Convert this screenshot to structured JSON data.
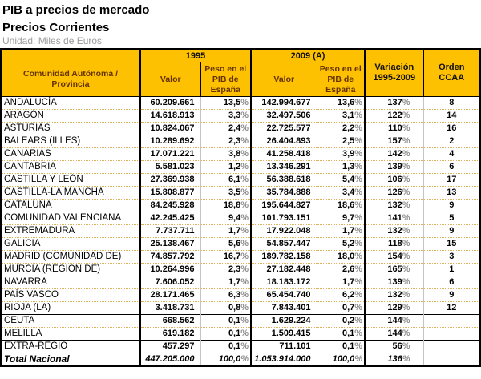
{
  "page": {
    "title_line1": "PIB a precios de mercado",
    "title_line2": "Precios Corrientes",
    "unit_label": "Unidad: Miles de Euros"
  },
  "colors": {
    "header_bg": "#FDC102",
    "header_text": "#663300",
    "row_divider_dotted": "#E0B055",
    "percent_sign_gray": "#8F8F8F",
    "border_black": "#000000"
  },
  "table": {
    "header": {
      "region": "Comunidad Autónoma / Provincia",
      "year1": "1995",
      "year2": "2009 (A)",
      "valor": "Valor",
      "peso": "Peso en el PIB de España",
      "variacion": "Variación 1995-2009",
      "orden": "Orden CCAA"
    },
    "rows": [
      {
        "name": "ANDALUCÍA",
        "valor_1995": "60.209.661",
        "peso_1995": "13,5%",
        "valor_2009": "142.994.677",
        "peso_2009": "13,6%",
        "variacion": "137%",
        "orden": "8"
      },
      {
        "name": "ARAGÓN",
        "valor_1995": "14.618.913",
        "peso_1995": "3,3%",
        "valor_2009": "32.497.506",
        "peso_2009": "3,1%",
        "variacion": "122%",
        "orden": "14"
      },
      {
        "name": "ASTURIAS",
        "valor_1995": "10.824.067",
        "peso_1995": "2,4%",
        "valor_2009": "22.725.577",
        "peso_2009": "2,2%",
        "variacion": "110%",
        "orden": "16"
      },
      {
        "name": "BALEARS (ILLES)",
        "valor_1995": "10.289.692",
        "peso_1995": "2,3%",
        "valor_2009": "26.404.893",
        "peso_2009": "2,5%",
        "variacion": "157%",
        "orden": "2"
      },
      {
        "name": "CANARIAS",
        "valor_1995": "17.071.221",
        "peso_1995": "3,8%",
        "valor_2009": "41.258.418",
        "peso_2009": "3,9%",
        "variacion": "142%",
        "orden": "4"
      },
      {
        "name": "CANTABRIA",
        "valor_1995": "5.581.023",
        "peso_1995": "1,2%",
        "valor_2009": "13.346.291",
        "peso_2009": "1,3%",
        "variacion": "139%",
        "orden": "6"
      },
      {
        "name": "CASTILLA Y LEÓN",
        "valor_1995": "27.369.938",
        "peso_1995": "6,1%",
        "valor_2009": "56.388.618",
        "peso_2009": "5,4%",
        "variacion": "106%",
        "orden": "17"
      },
      {
        "name": "CASTILLA-LA MANCHA",
        "valor_1995": "15.808.877",
        "peso_1995": "3,5%",
        "valor_2009": "35.784.888",
        "peso_2009": "3,4%",
        "variacion": "126%",
        "orden": "13"
      },
      {
        "name": "CATALUÑA",
        "valor_1995": "84.245.928",
        "peso_1995": "18,8%",
        "valor_2009": "195.644.827",
        "peso_2009": "18,6%",
        "variacion": "132%",
        "orden": "9"
      },
      {
        "name": "COMUNIDAD VALENCIANA",
        "valor_1995": "42.245.425",
        "peso_1995": "9,4%",
        "valor_2009": "101.793.151",
        "peso_2009": "9,7%",
        "variacion": "141%",
        "orden": "5"
      },
      {
        "name": "EXTREMADURA",
        "valor_1995": "7.737.711",
        "peso_1995": "1,7%",
        "valor_2009": "17.922.048",
        "peso_2009": "1,7%",
        "variacion": "132%",
        "orden": "9"
      },
      {
        "name": "GALICIA",
        "valor_1995": "25.138.467",
        "peso_1995": "5,6%",
        "valor_2009": "54.857.447",
        "peso_2009": "5,2%",
        "variacion": "118%",
        "orden": "15"
      },
      {
        "name": "MADRID (COMUNIDAD DE)",
        "valor_1995": "74.857.792",
        "peso_1995": "16,7%",
        "valor_2009": "189.782.158",
        "peso_2009": "18,0%",
        "variacion": "154%",
        "orden": "3"
      },
      {
        "name": "MURCIA (REGIÓN DE)",
        "valor_1995": "10.264.996",
        "peso_1995": "2,3%",
        "valor_2009": "27.182.448",
        "peso_2009": "2,6%",
        "variacion": "165%",
        "orden": "1"
      },
      {
        "name": "NAVARRA",
        "valor_1995": "7.606.052",
        "peso_1995": "1,7%",
        "valor_2009": "18.183.172",
        "peso_2009": "1,7%",
        "variacion": "139%",
        "orden": "6"
      },
      {
        "name": "PAÍS VASCO",
        "valor_1995": "28.171.465",
        "peso_1995": "6,3%",
        "valor_2009": "65.454.740",
        "peso_2009": "6,2%",
        "variacion": "132%",
        "orden": "9"
      },
      {
        "name": "RIOJA (LA)",
        "valor_1995": "3.418.731",
        "peso_1995": "0,8%",
        "valor_2009": "7.843.401",
        "peso_2009": "0,7%",
        "variacion": "129%",
        "orden": "12"
      },
      {
        "name": "CEUTA",
        "valor_1995": "668.562",
        "peso_1995": "0,1%",
        "valor_2009": "1.629.224",
        "peso_2009": "0,2%",
        "variacion": "144%",
        "orden": "",
        "section_start": true
      },
      {
        "name": "MELILLA",
        "valor_1995": "619.182",
        "peso_1995": "0,1%",
        "valor_2009": "1.509.415",
        "peso_2009": "0,1%",
        "variacion": "144%",
        "orden": ""
      },
      {
        "name": "EXTRA-REGIO",
        "valor_1995": "457.297",
        "peso_1995": "0,1%",
        "valor_2009": "711.101",
        "peso_2009": "0,1%",
        "variacion": "56%",
        "orden": "",
        "section_start": true
      },
      {
        "name": "Total Nacional",
        "valor_1995": "447.205.000",
        "peso_1995": "100,0%",
        "valor_2009": "1.053.914.000",
        "peso_2009": "100,0%",
        "variacion": "136%",
        "orden": "",
        "total": true
      }
    ]
  }
}
